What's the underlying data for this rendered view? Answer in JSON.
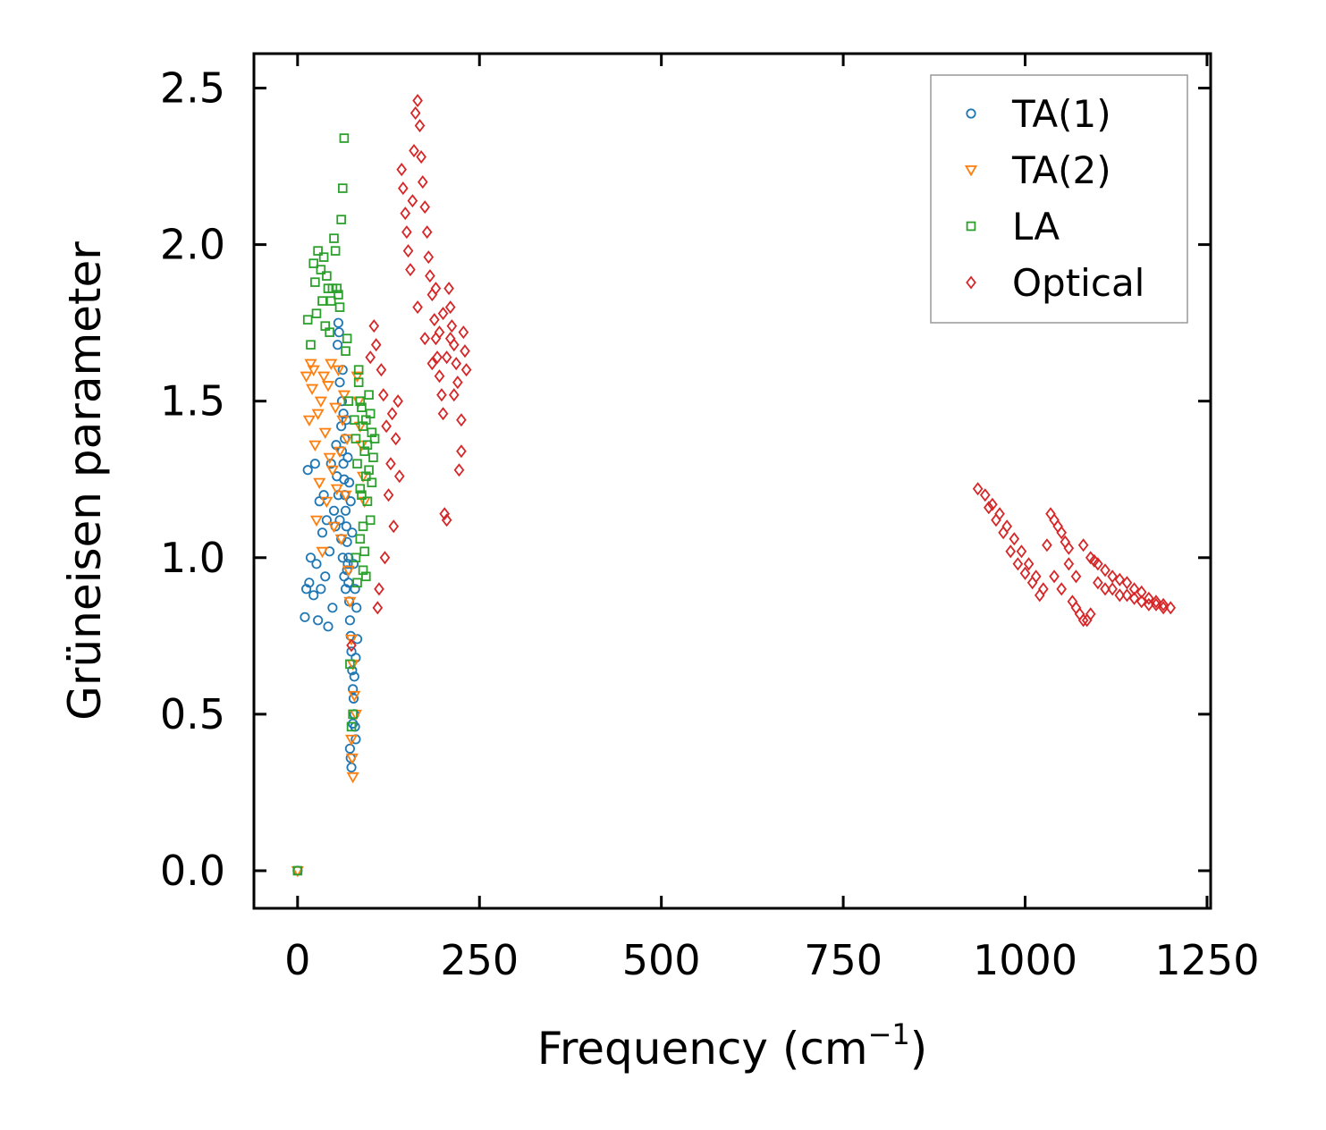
{
  "chart_data": {
    "type": "scatter",
    "title": "",
    "xlabel": "Frequency (cm",
    "xlabel_superscript": "−1",
    "xlabel_suffix": ")",
    "ylabel": "Grüneisen parameter",
    "xlim": [
      -60,
      1255
    ],
    "ylim": [
      -0.12,
      2.61
    ],
    "xticks": [
      0,
      250,
      500,
      750,
      1000,
      1250
    ],
    "xtick_labels": [
      "0",
      "250",
      "500",
      "750",
      "1000",
      "1250"
    ],
    "yticks": [
      0.0,
      0.5,
      1.0,
      1.5,
      2.0,
      2.5
    ],
    "ytick_labels": [
      "0.0",
      "0.5",
      "1.0",
      "1.5",
      "2.0",
      "2.5"
    ],
    "grid": false,
    "legend_position": "top-right",
    "series": [
      {
        "name": "TA(1)",
        "marker": "circle",
        "color": "#1f77b4",
        "points": [
          [
            0,
            0
          ],
          [
            10,
            0.81
          ],
          [
            12,
            0.9
          ],
          [
            14,
            1.28
          ],
          [
            16,
            0.92
          ],
          [
            18,
            1.0
          ],
          [
            22,
            0.88
          ],
          [
            24,
            1.3
          ],
          [
            26,
            0.98
          ],
          [
            28,
            0.8
          ],
          [
            30,
            1.18
          ],
          [
            32,
            0.9
          ],
          [
            34,
            1.08
          ],
          [
            36,
            1.2
          ],
          [
            38,
            0.94
          ],
          [
            40,
            1.12
          ],
          [
            42,
            0.78
          ],
          [
            44,
            1.02
          ],
          [
            46,
            1.3
          ],
          [
            48,
            0.84
          ],
          [
            50,
            1.15
          ],
          [
            52,
            1.1
          ],
          [
            53,
            1.36
          ],
          [
            55,
            1.68
          ],
          [
            56,
            1.75
          ],
          [
            57,
            1.72
          ],
          [
            58,
            1.56
          ],
          [
            60,
            1.42
          ],
          [
            61,
            1.5
          ],
          [
            62,
            1.6
          ],
          [
            63,
            1.3
          ],
          [
            64,
            1.25
          ],
          [
            65,
            1.2
          ],
          [
            66,
            1.15
          ],
          [
            67,
            1.1
          ],
          [
            68,
            1.05
          ],
          [
            69,
            0.98
          ],
          [
            70,
            0.92
          ],
          [
            71,
            0.86
          ],
          [
            72,
            0.8
          ],
          [
            73,
            0.75
          ],
          [
            74,
            0.7
          ],
          [
            75,
            0.64
          ],
          [
            76,
            0.58
          ],
          [
            77,
            0.55
          ],
          [
            78,
            0.5
          ],
          [
            79,
            0.46
          ],
          [
            80,
            0.42
          ],
          [
            73,
            0.36
          ],
          [
            74,
            0.33
          ],
          [
            72,
            0.39
          ],
          [
            76,
            0.47
          ],
          [
            78,
            0.62
          ],
          [
            80,
            0.68
          ],
          [
            82,
            0.74
          ],
          [
            70,
            1.0
          ],
          [
            68,
            0.96
          ],
          [
            66,
            0.9
          ],
          [
            64,
            0.94
          ],
          [
            62,
            1.0
          ],
          [
            60,
            1.06
          ],
          [
            58,
            1.12
          ],
          [
            56,
            1.2
          ],
          [
            54,
            1.26
          ],
          [
            65,
            1.38
          ],
          [
            67,
            1.44
          ],
          [
            69,
            1.32
          ],
          [
            71,
            1.24
          ],
          [
            73,
            1.18
          ],
          [
            75,
            1.08
          ],
          [
            77,
            0.98
          ],
          [
            79,
            0.9
          ],
          [
            81,
            0.84
          ],
          [
            63,
            1.46
          ],
          [
            61,
            1.34
          ]
        ]
      },
      {
        "name": "TA(2)",
        "marker": "triangle-down",
        "color": "#ff7f0e",
        "points": [
          [
            0,
            0
          ],
          [
            12,
            1.58
          ],
          [
            16,
            1.44
          ],
          [
            18,
            1.62
          ],
          [
            20,
            1.54
          ],
          [
            22,
            1.6
          ],
          [
            24,
            1.36
          ],
          [
            26,
            1.12
          ],
          [
            28,
            1.46
          ],
          [
            30,
            1.24
          ],
          [
            32,
            1.5
          ],
          [
            34,
            1.02
          ],
          [
            36,
            1.58
          ],
          [
            38,
            1.4
          ],
          [
            40,
            1.18
          ],
          [
            42,
            1.55
          ],
          [
            44,
            1.32
          ],
          [
            46,
            1.62
          ],
          [
            48,
            1.28
          ],
          [
            50,
            1.1
          ],
          [
            52,
            1.48
          ],
          [
            54,
            1.22
          ],
          [
            56,
            1.6
          ],
          [
            58,
            1.34
          ],
          [
            60,
            1.06
          ],
          [
            62,
            1.44
          ],
          [
            64,
            1.52
          ],
          [
            66,
            1.2
          ],
          [
            68,
            1.38
          ],
          [
            70,
            0.96
          ],
          [
            72,
            0.86
          ],
          [
            74,
            0.74
          ],
          [
            76,
            0.66
          ],
          [
            78,
            0.56
          ],
          [
            80,
            0.5
          ],
          [
            74,
            0.42
          ],
          [
            75,
            0.36
          ],
          [
            76,
            0.3
          ],
          [
            82,
            1.58
          ],
          [
            84,
            1.5
          ],
          [
            86,
            1.42
          ],
          [
            88,
            1.36
          ],
          [
            90,
            1.26
          ],
          [
            92,
            1.18
          ]
        ]
      },
      {
        "name": "LA",
        "marker": "square",
        "color": "#2ca02c",
        "points": [
          [
            0,
            0
          ],
          [
            14,
            1.76
          ],
          [
            18,
            1.68
          ],
          [
            22,
            1.94
          ],
          [
            24,
            1.88
          ],
          [
            26,
            1.78
          ],
          [
            28,
            1.98
          ],
          [
            32,
            1.92
          ],
          [
            34,
            1.82
          ],
          [
            36,
            1.96
          ],
          [
            38,
            1.74
          ],
          [
            40,
            1.9
          ],
          [
            42,
            1.86
          ],
          [
            44,
            1.72
          ],
          [
            46,
            1.82
          ],
          [
            48,
            1.86
          ],
          [
            50,
            2.02
          ],
          [
            52,
            1.98
          ],
          [
            54,
            1.86
          ],
          [
            56,
            1.84
          ],
          [
            58,
            1.8
          ],
          [
            60,
            2.08
          ],
          [
            62,
            2.18
          ],
          [
            64,
            2.34
          ],
          [
            66,
            1.66
          ],
          [
            68,
            1.7
          ],
          [
            70,
            1.5
          ],
          [
            72,
            0.66
          ],
          [
            74,
            0.46
          ],
          [
            76,
            0.5
          ],
          [
            78,
            1.44
          ],
          [
            80,
            1.38
          ],
          [
            82,
            1.3
          ],
          [
            84,
            1.6
          ],
          [
            86,
            1.5
          ],
          [
            88,
            1.2
          ],
          [
            90,
            1.1
          ],
          [
            92,
            1.02
          ],
          [
            94,
            0.94
          ],
          [
            96,
            1.36
          ],
          [
            98,
            1.28
          ],
          [
            100,
            1.46
          ],
          [
            102,
            1.4
          ],
          [
            104,
            1.32
          ],
          [
            80,
            1.0
          ],
          [
            82,
            0.92
          ],
          [
            84,
            1.56
          ],
          [
            86,
            1.22
          ],
          [
            88,
            1.48
          ],
          [
            90,
            1.42
          ],
          [
            92,
            1.34
          ],
          [
            94,
            1.26
          ],
          [
            96,
            1.18
          ],
          [
            98,
            1.52
          ],
          [
            100,
            1.12
          ],
          [
            86,
            1.06
          ],
          [
            90,
            0.96
          ],
          [
            94,
            1.44
          ],
          [
            102,
            1.24
          ],
          [
            106,
            1.38
          ]
        ]
      },
      {
        "name": "Optical",
        "marker": "diamond",
        "color": "#d62728",
        "points": [
          [
            74,
            0.72
          ],
          [
            100,
            1.64
          ],
          [
            105,
            1.74
          ],
          [
            108,
            1.68
          ],
          [
            110,
            0.84
          ],
          [
            112,
            0.9
          ],
          [
            115,
            1.6
          ],
          [
            118,
            1.52
          ],
          [
            120,
            1.0
          ],
          [
            122,
            1.42
          ],
          [
            125,
            1.2
          ],
          [
            128,
            1.3
          ],
          [
            130,
            1.46
          ],
          [
            132,
            1.1
          ],
          [
            135,
            1.38
          ],
          [
            138,
            1.5
          ],
          [
            140,
            1.26
          ],
          [
            143,
            2.24
          ],
          [
            145,
            2.18
          ],
          [
            148,
            2.1
          ],
          [
            150,
            2.04
          ],
          [
            152,
            1.98
          ],
          [
            155,
            1.92
          ],
          [
            158,
            2.14
          ],
          [
            160,
            2.3
          ],
          [
            162,
            2.42
          ],
          [
            165,
            2.46
          ],
          [
            168,
            2.38
          ],
          [
            170,
            2.28
          ],
          [
            172,
            2.2
          ],
          [
            175,
            2.12
          ],
          [
            178,
            2.04
          ],
          [
            180,
            1.96
          ],
          [
            182,
            1.9
          ],
          [
            185,
            1.84
          ],
          [
            188,
            1.76
          ],
          [
            190,
            1.7
          ],
          [
            192,
            1.64
          ],
          [
            195,
            1.58
          ],
          [
            198,
            1.52
          ],
          [
            200,
            1.46
          ],
          [
            202,
            1.14
          ],
          [
            205,
            1.12
          ],
          [
            208,
            1.86
          ],
          [
            210,
            1.8
          ],
          [
            212,
            1.74
          ],
          [
            215,
            1.68
          ],
          [
            218,
            1.62
          ],
          [
            220,
            1.56
          ],
          [
            222,
            1.28
          ],
          [
            225,
            1.34
          ],
          [
            228,
            1.72
          ],
          [
            230,
            1.66
          ],
          [
            232,
            1.6
          ],
          [
            165,
            1.8
          ],
          [
            175,
            1.7
          ],
          [
            185,
            1.62
          ],
          [
            195,
            1.72
          ],
          [
            205,
            1.64
          ],
          [
            215,
            1.52
          ],
          [
            225,
            1.44
          ],
          [
            190,
            1.86
          ],
          [
            200,
            1.78
          ],
          [
            210,
            1.7
          ],
          [
            935,
            1.22
          ],
          [
            945,
            1.2
          ],
          [
            955,
            1.17
          ],
          [
            965,
            1.14
          ],
          [
            975,
            1.1
          ],
          [
            985,
            1.06
          ],
          [
            995,
            1.02
          ],
          [
            1005,
            0.98
          ],
          [
            1015,
            0.94
          ],
          [
            1025,
            0.9
          ],
          [
            1035,
            1.14
          ],
          [
            1040,
            1.12
          ],
          [
            1045,
            1.1
          ],
          [
            1050,
            1.08
          ],
          [
            1055,
            1.05
          ],
          [
            1060,
            1.03
          ],
          [
            1065,
            0.86
          ],
          [
            1070,
            0.84
          ],
          [
            1075,
            0.82
          ],
          [
            1080,
            0.8
          ],
          [
            1085,
            0.8
          ],
          [
            1090,
            0.82
          ],
          [
            1095,
            0.99
          ],
          [
            1100,
            0.98
          ],
          [
            1110,
            0.96
          ],
          [
            1120,
            0.94
          ],
          [
            1130,
            0.93
          ],
          [
            1140,
            0.92
          ],
          [
            1150,
            0.9
          ],
          [
            1160,
            0.89
          ],
          [
            1170,
            0.87
          ],
          [
            1180,
            0.86
          ],
          [
            1190,
            0.85
          ],
          [
            1200,
            0.84
          ],
          [
            950,
            1.16
          ],
          [
            960,
            1.12
          ],
          [
            970,
            1.08
          ],
          [
            980,
            1.02
          ],
          [
            990,
            0.98
          ],
          [
            1000,
            0.95
          ],
          [
            1010,
            0.92
          ],
          [
            1020,
            0.88
          ],
          [
            1030,
            1.04
          ],
          [
            1040,
            0.94
          ],
          [
            1050,
            0.9
          ],
          [
            1060,
            0.98
          ],
          [
            1070,
            0.94
          ],
          [
            1080,
            1.04
          ],
          [
            1090,
            1.0
          ],
          [
            1100,
            0.92
          ],
          [
            1110,
            0.9
          ],
          [
            1120,
            0.9
          ],
          [
            1130,
            0.88
          ],
          [
            1140,
            0.88
          ],
          [
            1150,
            0.87
          ],
          [
            1160,
            0.86
          ],
          [
            1170,
            0.85
          ],
          [
            1180,
            0.85
          ],
          [
            1190,
            0.84
          ]
        ]
      }
    ]
  }
}
